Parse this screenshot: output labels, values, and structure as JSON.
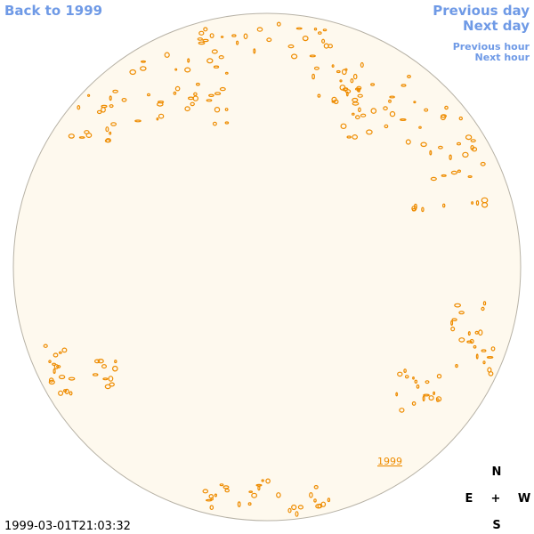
{
  "nav": {
    "back": "Back to 1999",
    "previous_day": "Previous day",
    "next_day": "Next day",
    "previous_hour": "Previous hour",
    "next_hour": "Next hour"
  },
  "marker": {
    "label": "1999"
  },
  "compass": {
    "north": "N",
    "east": "E",
    "center": "+",
    "west": "W",
    "south": "S"
  },
  "timestamp": "1999-03-01T21:03:32"
}
